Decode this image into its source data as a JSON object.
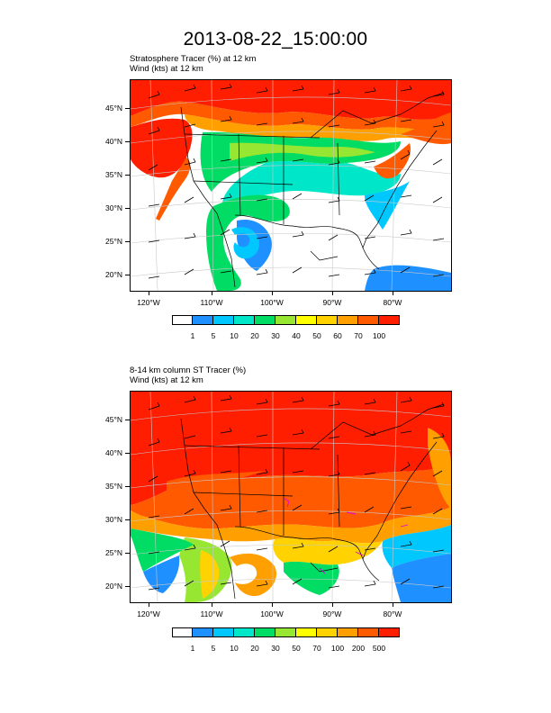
{
  "title": "2013-08-22_15:00:00",
  "panels": [
    {
      "line1": "Stratosphere Tracer   (%)     at   12 km",
      "line2": "Wind    (kts)     at   12 km",
      "colorbar": {
        "colors": [
          "#ffffff",
          "#1e90ff",
          "#00c8ff",
          "#00e6c8",
          "#00dc64",
          "#96e632",
          "#ffff00",
          "#ffd200",
          "#ffa000",
          "#ff5a00",
          "#ff1e00"
        ],
        "labels": [
          "1",
          "5",
          "10",
          "20",
          "30",
          "40",
          "50",
          "60",
          "70",
          "100"
        ]
      }
    },
    {
      "line1": "8-14 km column ST Tracer   (%)",
      "line2": "Wind    (kts)     at   12 km",
      "colorbar": {
        "colors": [
          "#ffffff",
          "#1e90ff",
          "#00c8ff",
          "#00e6c8",
          "#00dc64",
          "#96e632",
          "#ffff00",
          "#ffd200",
          "#ffa000",
          "#ff5a00",
          "#ff1e00"
        ],
        "labels": [
          "1",
          "5",
          "10",
          "20",
          "30",
          "50",
          "70",
          "100",
          "200",
          "500"
        ]
      }
    }
  ],
  "lat_labels": [
    "45°N",
    "40°N",
    "35°N",
    "30°N",
    "25°N",
    "20°N"
  ],
  "lon_labels": [
    "120°W",
    "110°W",
    "100°W",
    "90°W",
    "80°W"
  ]
}
